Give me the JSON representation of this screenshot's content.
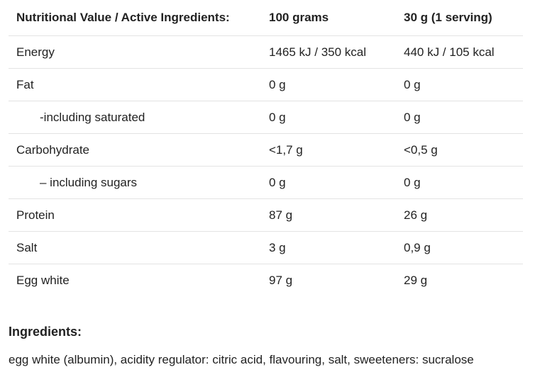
{
  "table": {
    "header": [
      "Nutritional Value / Active Ingredients:",
      "100 grams",
      "30 g (1 serving)"
    ],
    "rows": [
      [
        "Energy",
        "1465 kJ / 350 kcal",
        "440 kJ / 105 kcal"
      ],
      [
        "Fat",
        "0 g",
        "0 g"
      ],
      [
        "-including saturated",
        "0 g",
        "0 g"
      ],
      [
        "Carbohydrate",
        "<1,7 g",
        "<0,5 g"
      ],
      [
        "– including sugars",
        "0 g",
        "0 g"
      ],
      [
        "Protein",
        "87 g",
        "26 g"
      ],
      [
        "Salt",
        "3 g",
        "0,9 g"
      ],
      [
        "Egg white",
        "97 g",
        "29 g"
      ]
    ]
  },
  "ingredients": {
    "title": "Ingredients:",
    "text": "egg white (albumin), acidity regulator: citric acid, flavouring, salt, sweeteners: sucralose"
  }
}
